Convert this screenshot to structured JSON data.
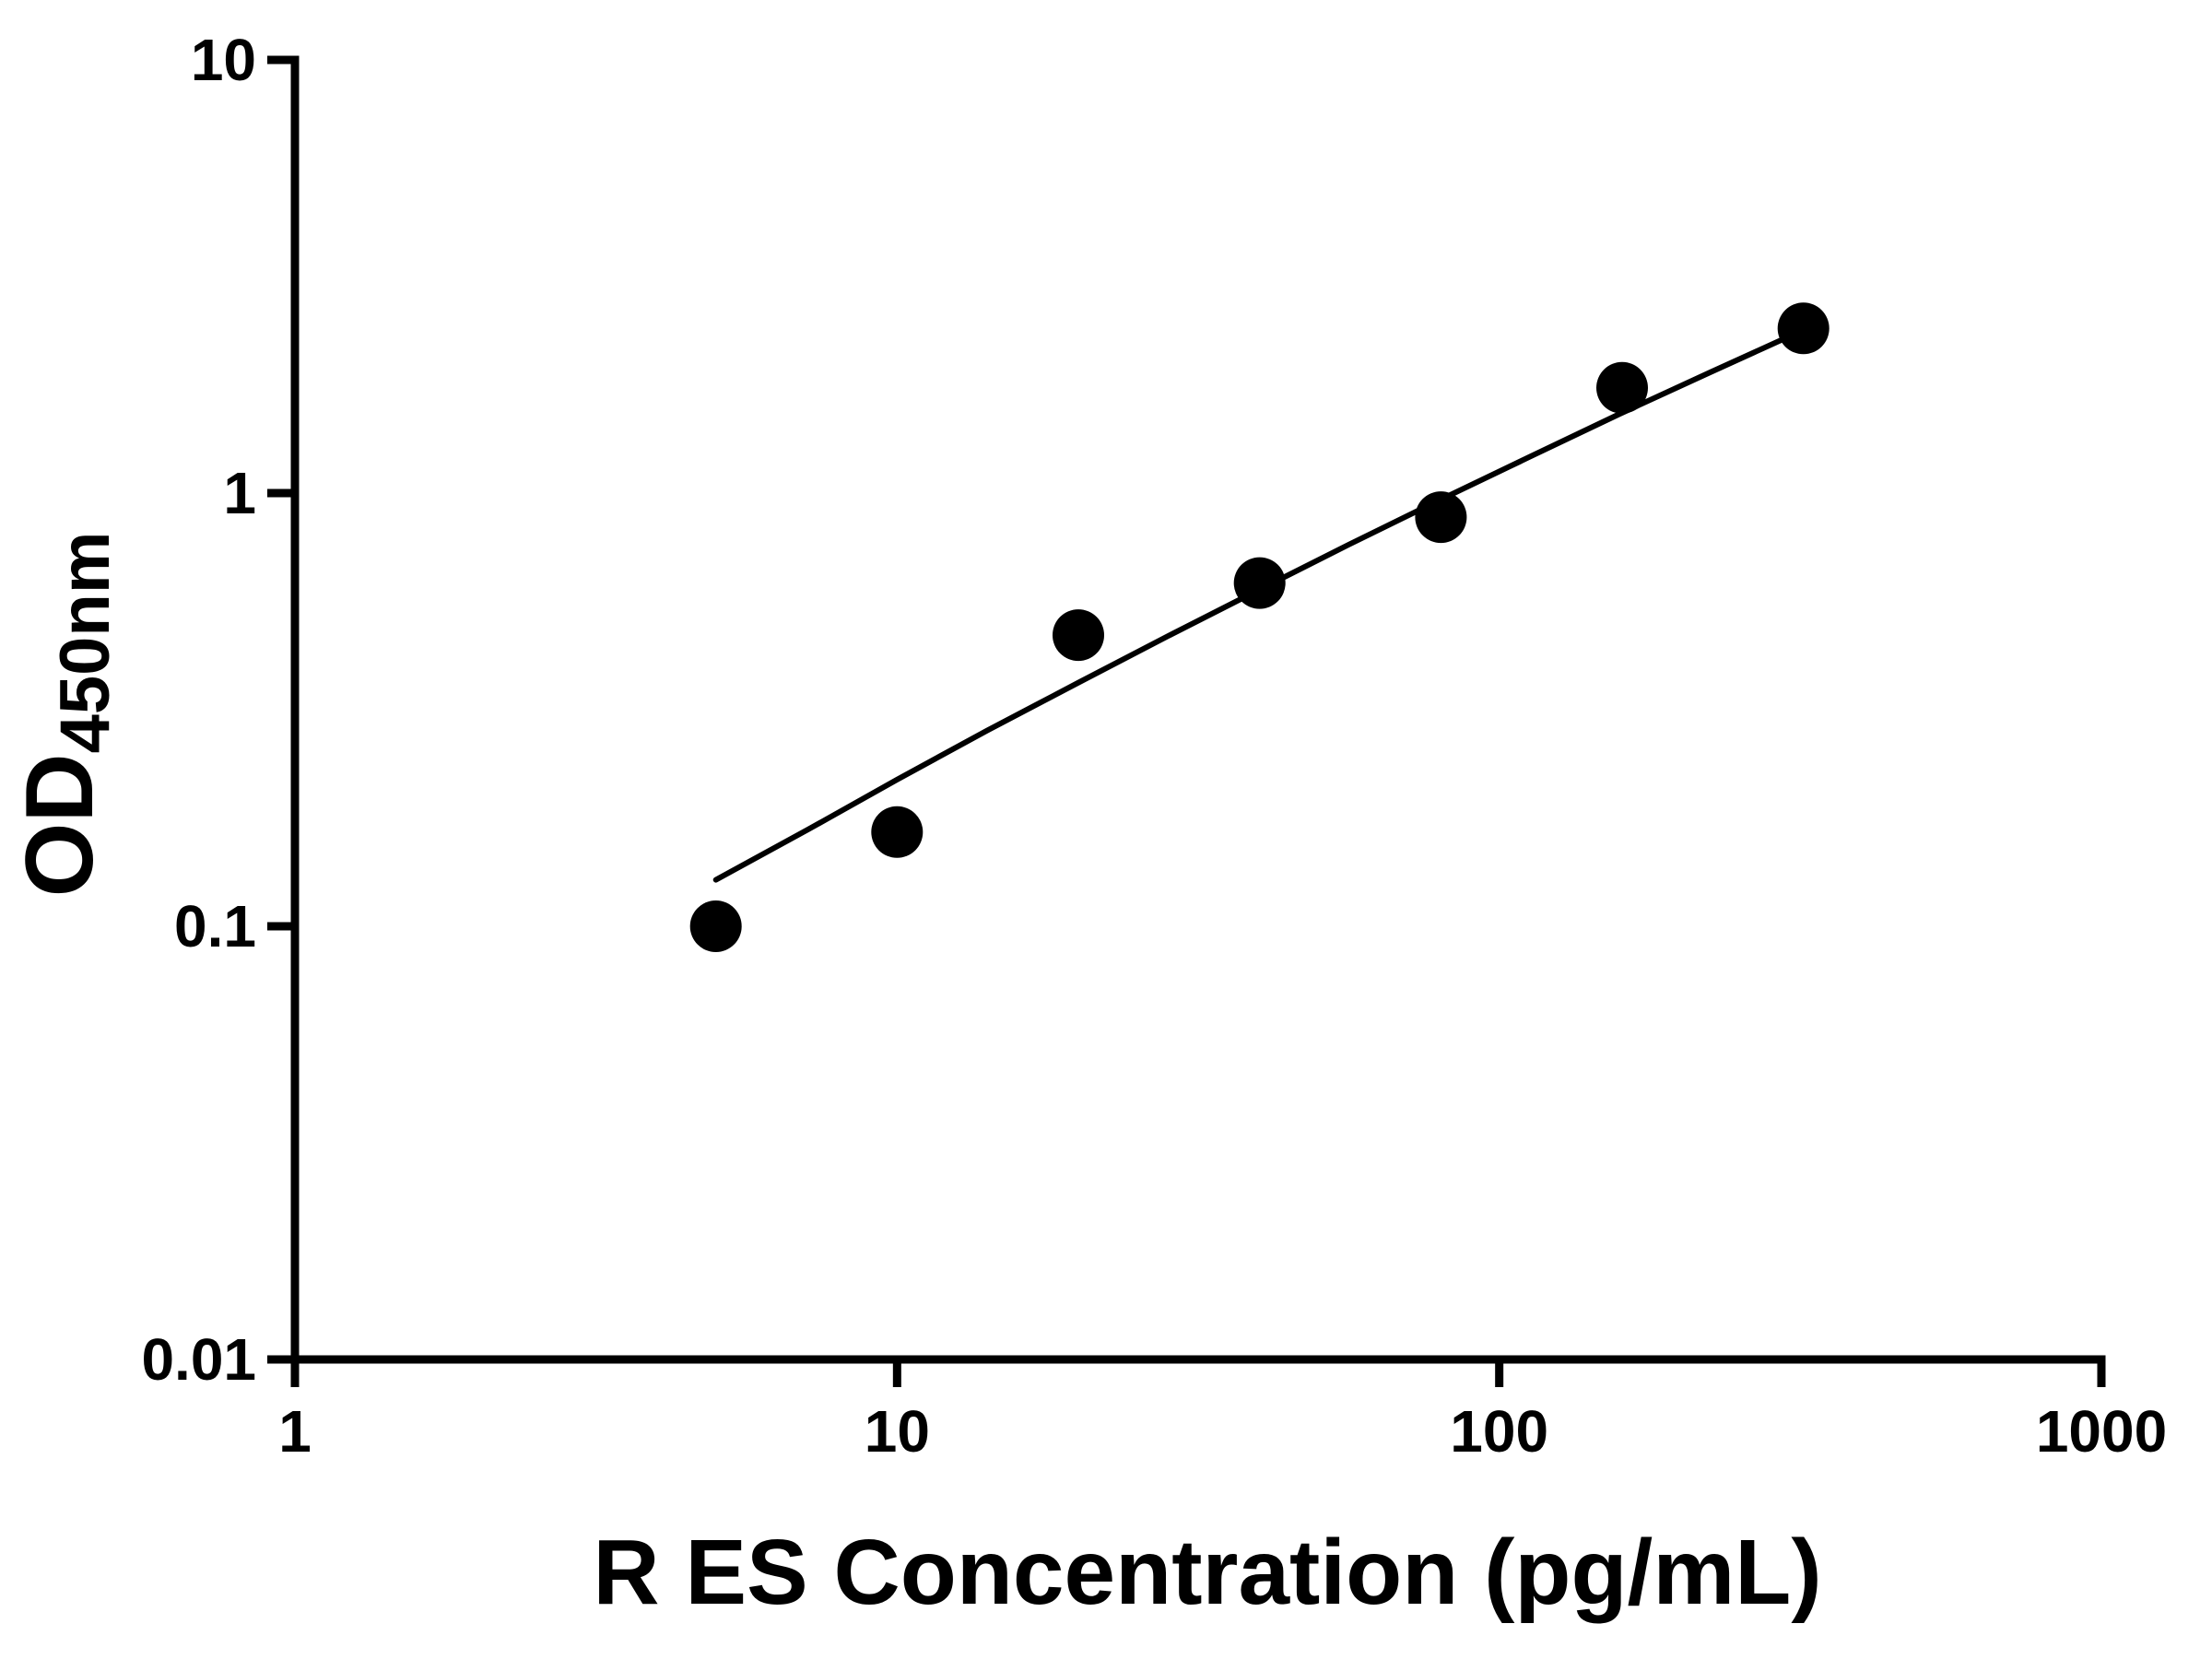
{
  "chart_data": {
    "type": "scatter",
    "title": "",
    "xlabel": "R ES Concentration (pg/mL)",
    "ylabel_main": "OD",
    "ylabel_sub": "450nm",
    "x_scale": "log",
    "y_scale": "log",
    "xlim": [
      1,
      1000
    ],
    "ylim": [
      0.01,
      10
    ],
    "x_ticks": [
      1,
      10,
      100,
      1000
    ],
    "x_tick_labels": [
      "1",
      "10",
      "100",
      "1000"
    ],
    "y_ticks": [
      0.01,
      0.1,
      1,
      10
    ],
    "y_tick_labels": [
      "0.01",
      "0.1",
      "1",
      "10"
    ],
    "grid": false,
    "legend": false,
    "series": [
      {
        "name": "fit-curve",
        "type": "line",
        "color": "#000000",
        "points": [
          [
            5,
            0.128
          ],
          [
            7.1,
            0.167
          ],
          [
            10,
            0.218
          ],
          [
            14.1,
            0.283
          ],
          [
            20,
            0.365
          ],
          [
            28.2,
            0.468
          ],
          [
            39.8,
            0.597
          ],
          [
            56.2,
            0.76
          ],
          [
            79.4,
            0.962
          ],
          [
            112,
            1.21
          ],
          [
            158,
            1.52
          ],
          [
            224,
            1.9
          ],
          [
            320,
            2.38
          ]
        ]
      },
      {
        "name": "standard-points",
        "type": "scatter",
        "color": "#000000",
        "points": [
          [
            5,
            0.1
          ],
          [
            10,
            0.165
          ],
          [
            20,
            0.47
          ],
          [
            40,
            0.62
          ],
          [
            80,
            0.88
          ],
          [
            160,
            1.75
          ],
          [
            320,
            2.4
          ]
        ]
      }
    ]
  },
  "colors": {
    "foreground": "#000000",
    "background": "#ffffff"
  }
}
